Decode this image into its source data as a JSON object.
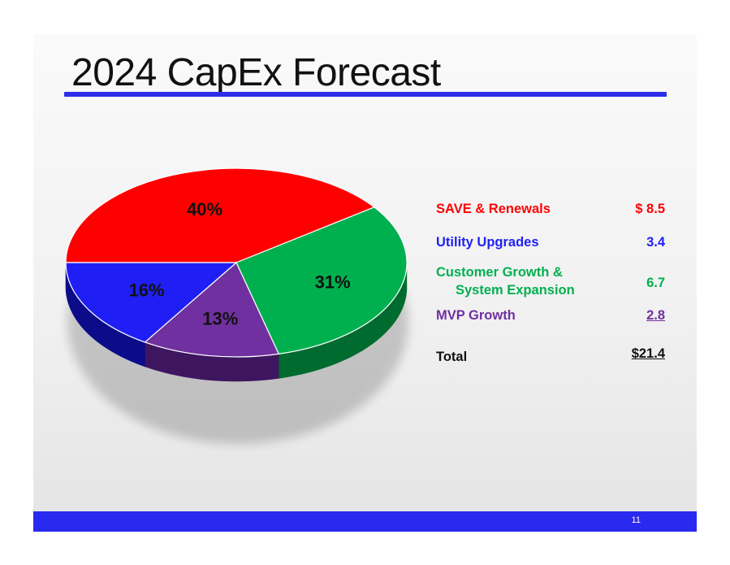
{
  "slide": {
    "title": "2024 CapEx Forecast",
    "page_number": "11"
  },
  "colors": {
    "accent_blue": "#2e2ee8",
    "footer_blue": "#2929f0",
    "save_renewals": "#ff0000",
    "utility_upgrades": "#1f1ff5",
    "customer_growth": "#00b04f",
    "mvp_growth": "#7030a0"
  },
  "chart_data": {
    "type": "pie",
    "title": "",
    "slices": [
      {
        "name": "SAVE & Renewals",
        "percent": 40,
        "label": "40%",
        "color": "#ff0000",
        "side_color": "#a30000"
      },
      {
        "name": "Customer Growth & System Expansion",
        "percent": 31,
        "label": "31%",
        "color": "#00b04f",
        "side_color": "#006b2e"
      },
      {
        "name": "MVP Growth",
        "percent": 13,
        "label": "13%",
        "color": "#7030a0",
        "side_color": "#3e1660"
      },
      {
        "name": "Utility Upgrades",
        "percent": 16,
        "label": "16%",
        "color": "#1f1ff5",
        "side_color": "#0c0c8a"
      }
    ]
  },
  "legend": {
    "items": [
      {
        "label_line1": "SAVE & Renewals",
        "label_line2": "",
        "value": "$  8.5",
        "color": "#ff0000",
        "underline": false
      },
      {
        "label_line1": "Utility Upgrades",
        "label_line2": "",
        "value": "3.4",
        "color": "#1f1ff5",
        "underline": false
      },
      {
        "label_line1": "Customer Growth &",
        "label_line2": "System Expansion",
        "value": "6.7",
        "color": "#00b04f",
        "underline": false
      },
      {
        "label_line1": "MVP Growth",
        "label_line2": "",
        "value": "2.8",
        "color": "#7030a0",
        "underline": true
      }
    ],
    "total": {
      "label": "Total",
      "value": "$21.4",
      "color": "#111111"
    }
  }
}
